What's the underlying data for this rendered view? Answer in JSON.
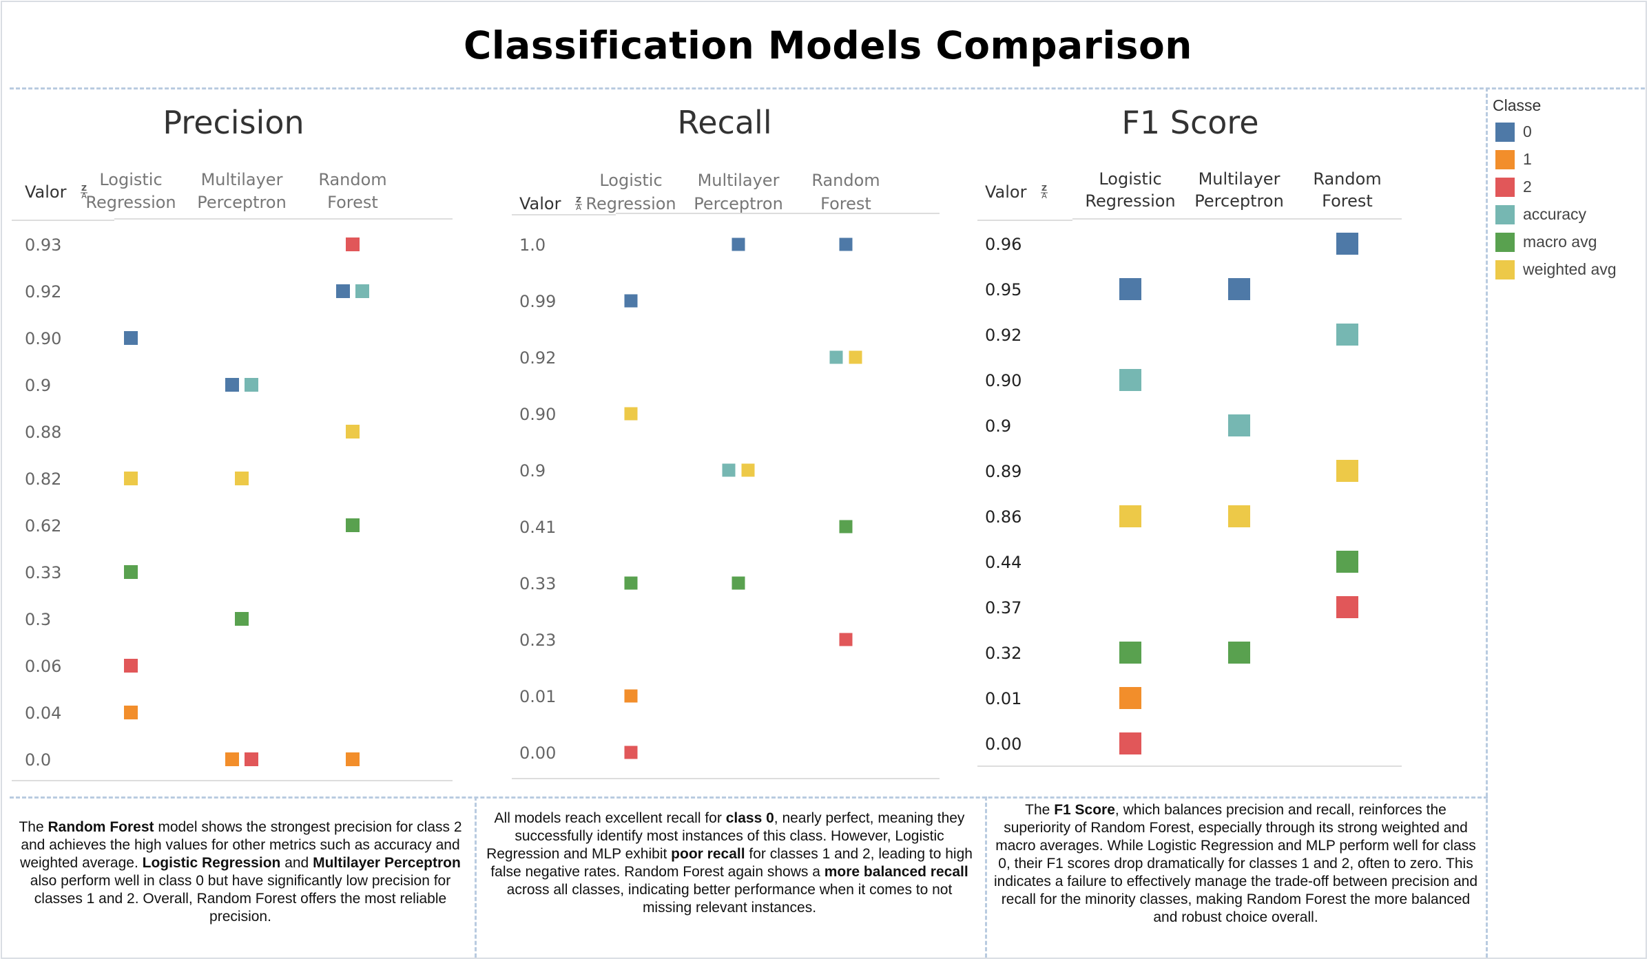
{
  "dashboard": {
    "title": "Classification Models Comparison"
  },
  "legend": {
    "title": "Classe",
    "items": [
      {
        "label": "0",
        "color": "#4e79a7"
      },
      {
        "label": "1",
        "color": "#f28e2b"
      },
      {
        "label": "2",
        "color": "#e15759"
      },
      {
        "label": "accuracy",
        "color": "#76b7b2"
      },
      {
        "label": "macro avg",
        "color": "#59a14f"
      },
      {
        "label": "weighted avg",
        "color": "#edc948"
      }
    ]
  },
  "chart_data": [
    {
      "type": "scatter",
      "title": "Precision",
      "ylabel": "Valor",
      "columns": [
        {
          "label": [
            "Logistic",
            "Regression"
          ],
          "model": "Logistic Regression"
        },
        {
          "label": [
            "Multilayer",
            "Perceptron"
          ],
          "model": "Multilayer Perceptron"
        },
        {
          "label": [
            "Random",
            "Forest"
          ],
          "model": "Random Forest"
        }
      ],
      "rows": [
        "0.93",
        "0.92",
        "0.90",
        "0.9",
        "0.88",
        "0.82",
        "0.62",
        "0.33",
        "0.3",
        "0.06",
        "0.04",
        "0.0"
      ],
      "points": [
        {
          "model": "Random Forest",
          "classes": [
            "2"
          ],
          "value": "0.93"
        },
        {
          "model": "Random Forest",
          "classes": [
            "0",
            "accuracy"
          ],
          "value": "0.92"
        },
        {
          "model": "Logistic Regression",
          "classes": [
            "0"
          ],
          "value": "0.90"
        },
        {
          "model": "Multilayer Perceptron",
          "classes": [
            "0",
            "accuracy"
          ],
          "value": "0.9"
        },
        {
          "model": "Random Forest",
          "classes": [
            "weighted avg"
          ],
          "value": "0.88"
        },
        {
          "model": "Logistic Regression",
          "classes": [
            "weighted avg"
          ],
          "value": "0.82"
        },
        {
          "model": "Multilayer Perceptron",
          "classes": [
            "weighted avg"
          ],
          "value": "0.82"
        },
        {
          "model": "Random Forest",
          "classes": [
            "macro avg"
          ],
          "value": "0.62"
        },
        {
          "model": "Logistic Regression",
          "classes": [
            "macro avg"
          ],
          "value": "0.33"
        },
        {
          "model": "Multilayer Perceptron",
          "classes": [
            "macro avg"
          ],
          "value": "0.3"
        },
        {
          "model": "Logistic Regression",
          "classes": [
            "2"
          ],
          "value": "0.06"
        },
        {
          "model": "Logistic Regression",
          "classes": [
            "1"
          ],
          "value": "0.04"
        },
        {
          "model": "Multilayer Perceptron",
          "classes": [
            "1",
            "2"
          ],
          "value": "0.0"
        },
        {
          "model": "Random Forest",
          "classes": [
            "1"
          ],
          "value": "0.0"
        }
      ]
    },
    {
      "type": "scatter",
      "title": "Recall",
      "ylabel": "Valor",
      "columns": [
        {
          "label": [
            "Logistic",
            "Regression"
          ],
          "model": "Logistic Regression"
        },
        {
          "label": [
            "Multilayer",
            "Perceptron"
          ],
          "model": "Multilayer Perceptron"
        },
        {
          "label": [
            "Random",
            "Forest"
          ],
          "model": "Random Forest"
        }
      ],
      "rows": [
        "1.0",
        "0.99",
        "0.92",
        "0.90",
        "0.9",
        "0.41",
        "0.33",
        "0.23",
        "0.01",
        "0.00"
      ],
      "points": [
        {
          "model": "Multilayer Perceptron",
          "classes": [
            "0"
          ],
          "value": "1.0"
        },
        {
          "model": "Random Forest",
          "classes": [
            "0"
          ],
          "value": "1.0"
        },
        {
          "model": "Logistic Regression",
          "classes": [
            "0"
          ],
          "value": "0.99"
        },
        {
          "model": "Random Forest",
          "classes": [
            "accuracy",
            "weighted avg"
          ],
          "value": "0.92"
        },
        {
          "model": "Logistic Regression",
          "classes": [
            "weighted avg"
          ],
          "value": "0.90"
        },
        {
          "model": "Multilayer Perceptron",
          "classes": [
            "accuracy",
            "weighted avg"
          ],
          "value": "0.9"
        },
        {
          "model": "Random Forest",
          "classes": [
            "macro avg"
          ],
          "value": "0.41"
        },
        {
          "model": "Logistic Regression",
          "classes": [
            "macro avg"
          ],
          "value": "0.33"
        },
        {
          "model": "Multilayer Perceptron",
          "classes": [
            "macro avg"
          ],
          "value": "0.33"
        },
        {
          "model": "Random Forest",
          "classes": [
            "2"
          ],
          "value": "0.23"
        },
        {
          "model": "Logistic Regression",
          "classes": [
            "1"
          ],
          "value": "0.01"
        },
        {
          "model": "Logistic Regression",
          "classes": [
            "2"
          ],
          "value": "0.00"
        }
      ]
    },
    {
      "type": "scatter",
      "title": "F1 Score",
      "ylabel": "Valor",
      "columns": [
        {
          "label": [
            "Logistic",
            "Regression"
          ],
          "model": "Logistic Regression"
        },
        {
          "label": [
            "Multilayer",
            "Perceptron"
          ],
          "model": "Multilayer Perceptron"
        },
        {
          "label": [
            "Random",
            "Forest"
          ],
          "model": "Random Forest"
        }
      ],
      "rows": [
        "0.96",
        "0.95",
        "0.92",
        "0.90",
        "0.9",
        "0.89",
        "0.86",
        "0.44",
        "0.37",
        "0.32",
        "0.01",
        "0.00"
      ],
      "points": [
        {
          "model": "Random Forest",
          "classes": [
            "0"
          ],
          "value": "0.96"
        },
        {
          "model": "Logistic Regression",
          "classes": [
            "0"
          ],
          "value": "0.95"
        },
        {
          "model": "Multilayer Perceptron",
          "classes": [
            "0"
          ],
          "value": "0.95"
        },
        {
          "model": "Random Forest",
          "classes": [
            "accuracy"
          ],
          "value": "0.92"
        },
        {
          "model": "Logistic Regression",
          "classes": [
            "accuracy"
          ],
          "value": "0.90"
        },
        {
          "model": "Multilayer Perceptron",
          "classes": [
            "accuracy"
          ],
          "value": "0.9"
        },
        {
          "model": "Random Forest",
          "classes": [
            "weighted avg"
          ],
          "value": "0.89"
        },
        {
          "model": "Logistic Regression",
          "classes": [
            "weighted avg"
          ],
          "value": "0.86"
        },
        {
          "model": "Multilayer Perceptron",
          "classes": [
            "weighted avg"
          ],
          "value": "0.86"
        },
        {
          "model": "Random Forest",
          "classes": [
            "macro avg"
          ],
          "value": "0.44"
        },
        {
          "model": "Random Forest",
          "classes": [
            "2"
          ],
          "value": "0.37"
        },
        {
          "model": "Logistic Regression",
          "classes": [
            "macro avg"
          ],
          "value": "0.32"
        },
        {
          "model": "Multilayer Perceptron",
          "classes": [
            "macro avg"
          ],
          "value": "0.32"
        },
        {
          "model": "Logistic Regression",
          "classes": [
            "1"
          ],
          "value": "0.01"
        },
        {
          "model": "Logistic Regression",
          "classes": [
            "2"
          ],
          "value": "0.00"
        }
      ]
    }
  ],
  "notes": [
    [
      {
        "t": "The "
      },
      {
        "t": "Random Forest",
        "b": true
      },
      {
        "t": " model shows the strongest precision for class 2 and achieves the high values for other metrics such as accuracy and weighted average. "
      },
      {
        "t": "Logistic Regression",
        "b": true
      },
      {
        "t": " and "
      },
      {
        "t": "Multilayer Perceptron",
        "b": true
      },
      {
        "t": " also perform well in class 0 but have significantly low precision for classes 1 and 2. Overall, Random Forest offers the most reliable precision."
      }
    ],
    [
      {
        "t": "All models reach excellent recall for "
      },
      {
        "t": "class 0",
        "b": true
      },
      {
        "t": ", nearly perfect, meaning they successfully identify most instances of this class. However, Logistic Regression and MLP exhibit "
      },
      {
        "t": "poor recall",
        "b": true
      },
      {
        "t": " for classes 1 and 2, leading to high false negative rates. Random Forest again shows a "
      },
      {
        "t": "more balanced recall",
        "b": true
      },
      {
        "t": " across all classes, indicating better performance when it comes to not missing relevant instances."
      }
    ],
    [
      {
        "t": "The "
      },
      {
        "t": "F1 Score",
        "b": true
      },
      {
        "t": ", which balances precision and recall, reinforces the superiority of Random Forest, especially through its strong weighted and macro averages. While Logistic Regression and MLP perform well for class 0, their F1 scores drop dramatically for classes 1 and 2, often to zero. This indicates a failure to effectively manage the trade-off between precision and recall for the minority classes, making Random Forest the more balanced and robust choice overall."
      }
    ]
  ]
}
